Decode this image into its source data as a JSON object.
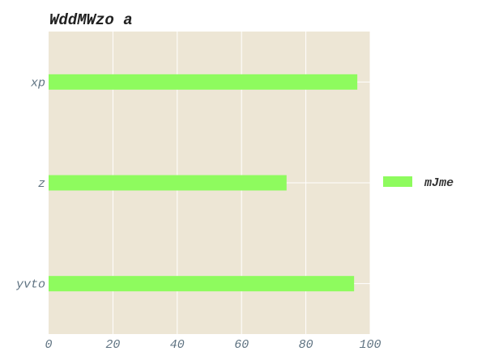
{
  "colors": {
    "plot_background": "#ede6d5",
    "grid": "#ffffff",
    "bar": "#8efb5e",
    "title": "#222222",
    "tick": "#5f7382"
  },
  "chart_data": {
    "type": "bar",
    "orientation": "horizontal",
    "title": "WddMWzo a",
    "xlabel": "",
    "ylabel": "",
    "categories": [
      "xp",
      "z",
      "yvto"
    ],
    "series": [
      {
        "name": "mJme",
        "values": [
          96,
          74,
          95
        ]
      }
    ],
    "xlim": [
      0,
      100
    ],
    "x_ticks": [
      "0",
      "20",
      "40",
      "60",
      "80",
      "100"
    ],
    "grid": true,
    "legend_position": "right"
  }
}
